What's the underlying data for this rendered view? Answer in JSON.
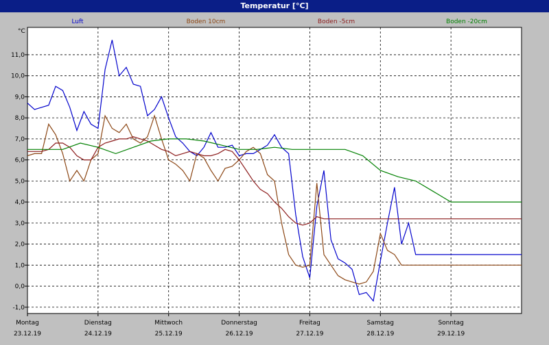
{
  "window": {
    "title": "Temperatur [°C]"
  },
  "chart_data": {
    "type": "line",
    "title": "Temperatur [°C]",
    "ylabel": "°C",
    "xlabel": "",
    "ylim": [
      -1.3,
      12.3
    ],
    "yticks": [
      -1.0,
      0.0,
      1.0,
      2.0,
      3.0,
      4.0,
      5.0,
      6.0,
      7.0,
      8.0,
      9.0,
      10.0,
      11.0
    ],
    "ytick_labels": [
      "-1,0",
      "0,0",
      "1,0",
      "2,0",
      "3,0",
      "4,0",
      "5,0",
      "6,0",
      "7,0",
      "8,0",
      "9,0",
      "10,0",
      "11,0"
    ],
    "xlim": [
      0,
      7
    ],
    "days": [
      {
        "name": "Montag",
        "date": "23.12.19"
      },
      {
        "name": "Dienstag",
        "date": "24.12.19"
      },
      {
        "name": "Mittwoch",
        "date": "25.12.19"
      },
      {
        "name": "Donnerstag",
        "date": "26.12.19"
      },
      {
        "name": "Freitag",
        "date": "27.12.19"
      },
      {
        "name": "Samstag",
        "date": "28.12.19"
      },
      {
        "name": "Sonntag",
        "date": "29.12.19"
      }
    ],
    "grid": true,
    "background": "#ffffff",
    "series": [
      {
        "name": "Luft",
        "color": "#0000cc",
        "x": [
          0,
          0.1,
          0.2,
          0.3,
          0.4,
          0.5,
          0.6,
          0.7,
          0.8,
          0.9,
          1.0,
          1.1,
          1.2,
          1.3,
          1.4,
          1.5,
          1.6,
          1.7,
          1.8,
          1.9,
          2.0,
          2.1,
          2.2,
          2.3,
          2.4,
          2.5,
          2.6,
          2.7,
          2.8,
          2.9,
          3.0,
          3.1,
          3.2,
          3.3,
          3.4,
          3.5,
          3.6,
          3.7,
          3.8,
          3.9,
          4.0,
          4.1,
          4.2,
          4.3,
          4.4,
          4.5,
          4.6,
          4.7,
          4.8,
          4.9,
          5.0,
          5.1,
          5.2,
          5.3,
          5.4,
          5.5,
          5.6,
          5.7,
          5.8,
          5.9,
          6.0,
          6.1,
          6.2,
          6.3,
          6.4,
          6.5,
          6.6,
          6.7,
          6.8,
          6.9,
          7.0
        ],
        "y": [
          8.7,
          8.4,
          8.5,
          8.6,
          9.5,
          9.3,
          8.5,
          7.4,
          8.3,
          7.7,
          7.5,
          10.3,
          11.7,
          10.0,
          10.4,
          9.6,
          9.5,
          8.1,
          8.4,
          9.0,
          8.0,
          7.1,
          6.8,
          6.4,
          6.2,
          6.6,
          7.3,
          6.6,
          6.6,
          6.7,
          6.2,
          6.3,
          6.3,
          6.5,
          6.7,
          7.2,
          6.6,
          6.3,
          3.4,
          1.4,
          0.4,
          3.8,
          5.5,
          2.2,
          1.3,
          1.1,
          0.8,
          -0.4,
          -0.3,
          -0.7,
          1.2,
          3.0,
          4.7,
          2.0,
          3.0,
          1.5,
          1.5,
          1.5,
          1.5,
          1.5,
          1.5,
          1.5,
          1.5,
          1.5,
          1.5,
          1.5,
          1.5,
          1.5,
          1.5,
          1.5,
          1.5
        ]
      },
      {
        "name": "Boden 10cm",
        "color": "#8b4513",
        "x": [
          0,
          0.1,
          0.2,
          0.3,
          0.4,
          0.5,
          0.6,
          0.7,
          0.8,
          0.9,
          1.0,
          1.1,
          1.2,
          1.3,
          1.4,
          1.5,
          1.6,
          1.7,
          1.8,
          1.9,
          2.0,
          2.1,
          2.2,
          2.3,
          2.4,
          2.5,
          2.6,
          2.7,
          2.8,
          2.9,
          3.0,
          3.1,
          3.2,
          3.3,
          3.4,
          3.5,
          3.6,
          3.7,
          3.8,
          3.9,
          4.0,
          4.1,
          4.2,
          4.3,
          4.4,
          4.5,
          4.6,
          4.7,
          4.8,
          4.9,
          5.0,
          5.1,
          5.2,
          5.3,
          5.4,
          5.5,
          5.6,
          5.7,
          5.8,
          5.9,
          6.0,
          6.1,
          6.2,
          6.3,
          6.4,
          6.5,
          6.6,
          6.7,
          6.8,
          6.9,
          7.0
        ],
        "y": [
          6.2,
          6.3,
          6.3,
          7.7,
          7.2,
          6.3,
          5.0,
          5.5,
          5.0,
          6.0,
          6.3,
          8.1,
          7.5,
          7.3,
          7.7,
          7.0,
          6.8,
          7.1,
          8.1,
          7.0,
          6.0,
          5.8,
          5.5,
          5.0,
          6.3,
          6.1,
          5.5,
          5.0,
          5.6,
          5.7,
          6.0,
          6.4,
          6.6,
          6.3,
          5.3,
          5.0,
          3.0,
          1.5,
          1.0,
          0.9,
          1.0,
          4.9,
          1.5,
          1.0,
          0.5,
          0.3,
          0.2,
          0.1,
          0.2,
          0.7,
          2.5,
          1.7,
          1.5,
          1.0,
          1.0,
          1.0,
          1.0,
          1.0,
          1.0,
          1.0,
          1.0,
          1.0,
          1.0,
          1.0,
          1.0,
          1.0,
          1.0,
          1.0,
          1.0,
          1.0,
          1.0
        ]
      },
      {
        "name": "Boden -5cm",
        "color": "#8b1a1a",
        "x": [
          0,
          0.1,
          0.2,
          0.3,
          0.4,
          0.5,
          0.6,
          0.7,
          0.8,
          0.9,
          1.0,
          1.1,
          1.2,
          1.3,
          1.4,
          1.5,
          1.6,
          1.7,
          1.8,
          1.9,
          2.0,
          2.1,
          2.2,
          2.3,
          2.4,
          2.5,
          2.6,
          2.7,
          2.8,
          2.9,
          3.0,
          3.1,
          3.2,
          3.3,
          3.4,
          3.5,
          3.6,
          3.7,
          3.8,
          3.9,
          4.0,
          4.1,
          4.2,
          4.3,
          4.4,
          4.5,
          4.6,
          4.7,
          4.8,
          4.9,
          5.0,
          5.1,
          5.2,
          5.3,
          5.4,
          5.5,
          5.6,
          5.7,
          5.8,
          5.9,
          6.0,
          6.1,
          6.2,
          6.3,
          6.4,
          6.5,
          6.6,
          6.7,
          6.8,
          6.9,
          7.0
        ],
        "y": [
          6.4,
          6.4,
          6.4,
          6.5,
          6.8,
          6.8,
          6.6,
          6.2,
          6.0,
          6.0,
          6.6,
          6.8,
          6.9,
          7.0,
          7.0,
          7.1,
          7.0,
          6.9,
          6.7,
          6.5,
          6.4,
          6.2,
          6.3,
          6.4,
          6.3,
          6.2,
          6.2,
          6.3,
          6.5,
          6.4,
          6.0,
          5.5,
          5.0,
          4.6,
          4.4,
          4.0,
          3.7,
          3.3,
          3.0,
          2.9,
          3.0,
          3.3,
          3.2,
          3.2,
          3.2,
          3.2,
          3.2,
          3.2,
          3.2,
          3.2,
          3.2,
          3.2,
          3.2,
          3.2,
          3.2,
          3.2,
          3.2,
          3.2,
          3.2,
          3.2,
          3.2,
          3.2,
          3.2,
          3.2,
          3.2,
          3.2,
          3.2,
          3.2,
          3.2,
          3.2,
          3.2
        ]
      },
      {
        "name": "Boden -20cm",
        "color": "#008000",
        "x": [
          0,
          0.25,
          0.5,
          0.75,
          1.0,
          1.25,
          1.5,
          1.75,
          2.0,
          2.25,
          2.5,
          2.75,
          3.0,
          3.25,
          3.5,
          3.75,
          4.0,
          4.25,
          4.5,
          4.75,
          5.0,
          5.25,
          5.5,
          5.75,
          6.0,
          6.25,
          6.5,
          6.75,
          7.0
        ],
        "y": [
          6.5,
          6.5,
          6.5,
          6.8,
          6.6,
          6.3,
          6.6,
          6.9,
          7.0,
          7.0,
          6.9,
          6.7,
          6.5,
          6.5,
          6.6,
          6.5,
          6.5,
          6.5,
          6.5,
          6.2,
          5.5,
          5.2,
          5.0,
          4.5,
          4.0,
          4.0,
          4.0,
          4.0,
          4.0
        ]
      }
    ]
  }
}
